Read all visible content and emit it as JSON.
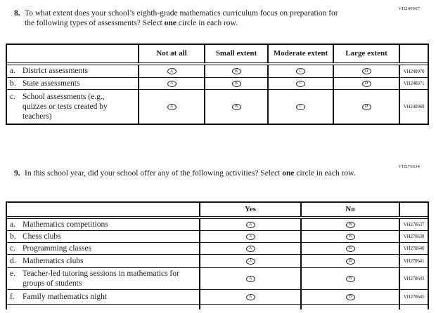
{
  "page": {
    "background": "#ffffff",
    "text_color": "#1a1a1a",
    "border_color": "#111111"
  },
  "questions": [
    {
      "number": "8.",
      "code": "VH240967",
      "seg1": "To what extent does your school’s eighth-grade mathematics curriculum focus on preparation for the following types of assessments? Select ",
      "bold": "one",
      "seg2": " circle in each row."
    },
    {
      "number": "9.",
      "code": "VH270634",
      "seg1": "In this school year, did your school offer any of the following activities? Select ",
      "bold": "one",
      "seg2": " circle in each row."
    }
  ],
  "table1": {
    "headers": [
      "",
      "Not at all",
      "Small extent",
      "Moderate extent",
      "Large extent",
      ""
    ],
    "rows": [
      {
        "letter": "a.",
        "label": "District assessments",
        "options": [
          "A",
          "B",
          "C",
          "D"
        ],
        "code": "VH240970"
      },
      {
        "letter": "b.",
        "label": "State assessments",
        "options": [
          "A",
          "B",
          "C",
          "D"
        ],
        "code": "VH240971"
      },
      {
        "letter": "c.",
        "label": "School assessments (e.g., quizzes or tests created by teachers)",
        "options": [
          "A",
          "B",
          "C",
          "D"
        ],
        "code": "VH240969"
      }
    ]
  },
  "table2": {
    "headers": [
      "",
      "Yes",
      "No",
      ""
    ],
    "cut_off_at_bottom": true,
    "rows": [
      {
        "letter": "a.",
        "label": "Mathematics competitions",
        "options": [
          "A",
          "B"
        ],
        "code": "VH270637"
      },
      {
        "letter": "b.",
        "label": "Chess clubs",
        "options": [
          "A",
          "B"
        ],
        "code": "VH270638"
      },
      {
        "letter": "c.",
        "label": "Programming classes",
        "options": [
          "A",
          "B"
        ],
        "code": "VH270640"
      },
      {
        "letter": "d.",
        "label": "Mathematics clubs",
        "options": [
          "A",
          "B"
        ],
        "code": "VH270641"
      },
      {
        "letter": "e.",
        "label": "Teacher-led tutoring sessions in mathematics for groups of students",
        "options": [
          "A",
          "B"
        ],
        "code": "VH270643"
      },
      {
        "letter": "f.",
        "label": "Family mathematics night",
        "options": [
          "A",
          "B"
        ],
        "code": "VH270645"
      }
    ]
  }
}
